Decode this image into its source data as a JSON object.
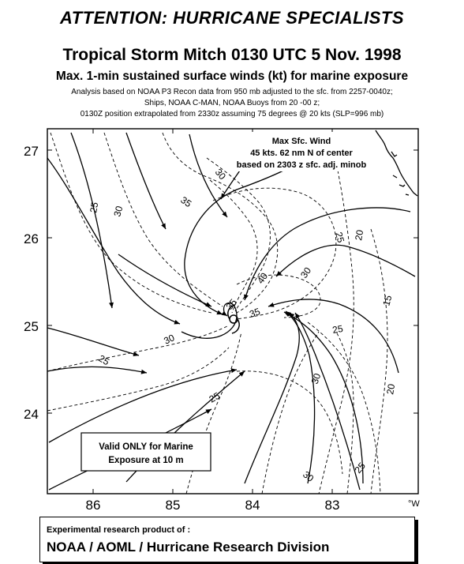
{
  "header": {
    "attention": "ATTENTION: HURRICANE SPECIALISTS",
    "title": "Tropical Storm Mitch 0130 UTC 5 Nov. 1998",
    "subtitle": "Max. 1-min sustained surface winds (kt) for marine exposure",
    "notes": [
      "Analysis based on NOAA P3 Recon data from 950 mb adjusted to the sfc. from 2257-0040z;",
      "Ships, NOAA C-MAN, NOAA Buoys from  20 -00 z;",
      "0130Z  position extrapolated from 2330z assuming 75 degrees @ 20 kts  (SLP=996 mb)"
    ]
  },
  "map": {
    "lat_labels": [
      "27",
      "26",
      "25",
      "24"
    ],
    "lon_labels": [
      "86",
      "85",
      "84",
      "83"
    ],
    "lon_unit": "°W",
    "max_wind_box": {
      "line1": "Max Sfc. Wind",
      "line2": "45 kts. 62 nm N of center",
      "line3": "based on 2303 z sfc. adj. minob"
    },
    "valid_box": {
      "line1": "Valid ONLY for Marine",
      "line2": "Exposure at 10 m"
    },
    "isotach_labels": [
      "30",
      "35",
      "25",
      "30",
      "20",
      "25",
      "40",
      "30",
      "35",
      "15",
      "30",
      "35",
      "25",
      "30",
      "25",
      "20",
      "25",
      "30",
      "25",
      "30",
      "25",
      "30",
      "25"
    ],
    "colors": {
      "background": "#ffffff",
      "lines": "#000000"
    }
  },
  "footer": {
    "line1": "Experimental research product of :",
    "line2": "NOAA / AOML / Hurricane Research Division"
  }
}
